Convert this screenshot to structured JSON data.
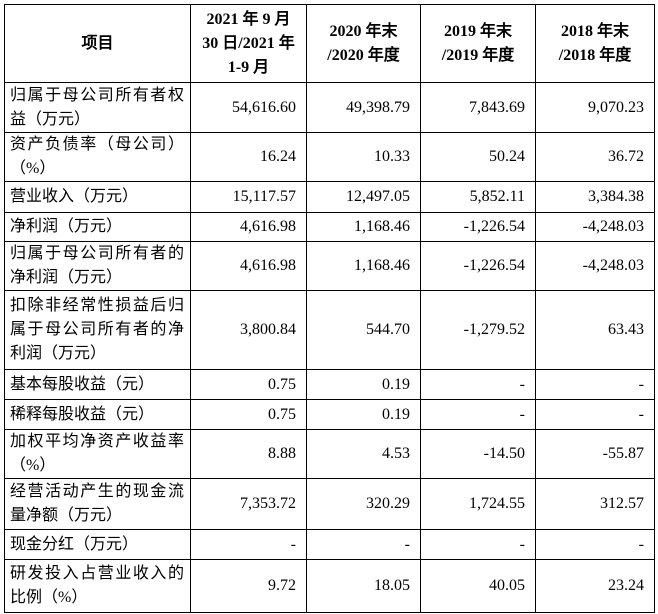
{
  "table": {
    "header": [
      "项目",
      "2021 年 9 月\n30 日/2021 年\n1-9 月",
      "2020 年末\n/2020 年度",
      "2019 年末\n/2019 年度",
      "2018 年末\n/2018 年度"
    ],
    "rows": [
      [
        "归属于母公司所有者权益（万元）",
        "54,616.60",
        "49,398.79",
        "7,843.69",
        "9,070.23"
      ],
      [
        "资产负债率（母公司）（%）",
        "16.24",
        "10.33",
        "50.24",
        "36.72"
      ],
      [
        "营业收入（万元）",
        "15,117.57",
        "12,497.05",
        "5,852.11",
        "3,384.38"
      ],
      [
        "净利润（万元）",
        "4,616.98",
        "1,168.46",
        "-1,226.54",
        "-4,248.03"
      ],
      [
        "归属于母公司所有者的净利润（万元）",
        "4,616.98",
        "1,168.46",
        "-1,226.54",
        "-4,248.03"
      ],
      [
        "扣除非经常性损益后归属于母公司所有者的净利润（万元）",
        "3,800.84",
        "544.70",
        "-1,279.52",
        "63.43"
      ],
      [
        "基本每股收益（元）",
        "0.75",
        "0.19",
        "-",
        "-"
      ],
      [
        "稀释每股收益（元）",
        "0.75",
        "0.19",
        "-",
        "-"
      ],
      [
        "加权平均净资产收益率（%）",
        "8.88",
        "4.53",
        "-14.50",
        "-55.87"
      ],
      [
        "经营活动产生的现金流量净额（万元）",
        "7,353.72",
        "320.29",
        "1,724.55",
        "312.57"
      ],
      [
        "现金分红（万元）",
        "-",
        "-",
        "-",
        "-"
      ],
      [
        "研发投入占营业收入的比例（%）",
        "9.72",
        "18.05",
        "40.05",
        "23.24"
      ]
    ]
  }
}
